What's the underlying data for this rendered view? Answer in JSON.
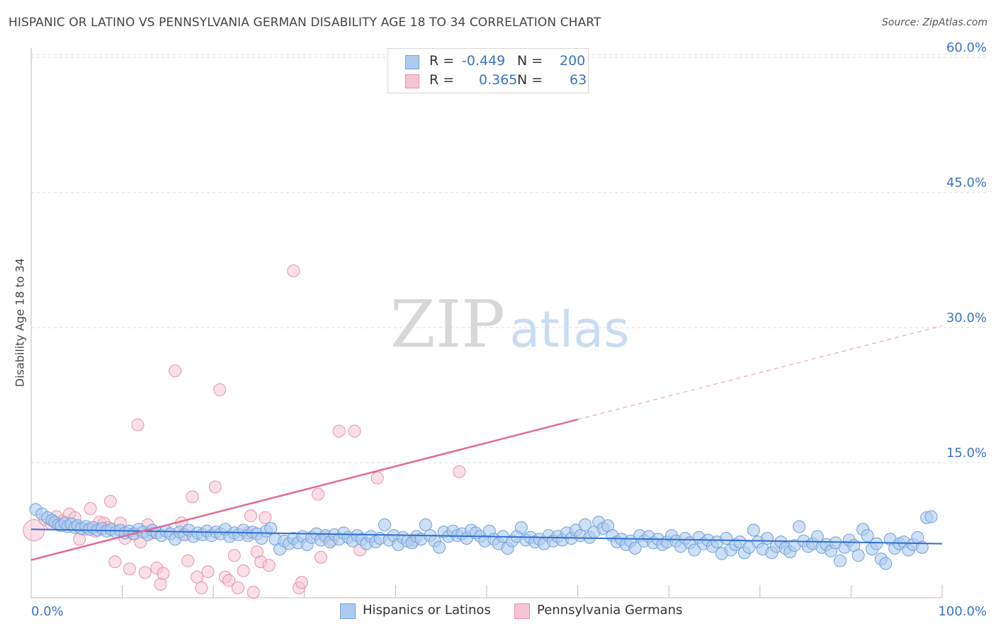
{
  "title": "HISPANIC OR LATINO VS PENNSYLVANIA GERMAN DISABILITY AGE 18 TO 34 CORRELATION CHART",
  "source": "Source: ZipAtlas.com",
  "watermark": {
    "zip": "ZIP",
    "atlas": "atlas"
  },
  "colors": {
    "blue_fill": "#aecbef",
    "blue_stroke": "#6f9fdc",
    "blue_line": "#2f6fd0",
    "pink_fill": "#f6c4d3",
    "pink_stroke": "#e891ad",
    "pink_line": "#e06a95",
    "axis_text": "#3a73c4",
    "grid": "#dcdcdc"
  },
  "legend": {
    "rows": [
      {
        "r_label": "R =",
        "r_value": "-0.449",
        "n_label": "N =",
        "n_value": "200"
      },
      {
        "r_label": "R =",
        "r_value": "0.365",
        "n_label": "N =",
        "n_value": "63"
      }
    ]
  },
  "bottom_legend": [
    {
      "label": "Hispanics or Latinos"
    },
    {
      "label": "Pennsylvania Germans"
    }
  ],
  "chart_data": {
    "type": "scatter",
    "title": "HISPANIC OR LATINO VS PENNSYLVANIA GERMAN DISABILITY AGE 18 TO 34 CORRELATION CHART",
    "xlabel": "",
    "ylabel": "Disability Age 18 to 34",
    "xlim": [
      0,
      100
    ],
    "ylim": [
      0,
      63
    ],
    "x_tick_labels": [
      "0.0%",
      "100.0%"
    ],
    "y_ticks": [
      15,
      30,
      45,
      60
    ],
    "y_tick_labels": [
      "15.0%",
      "30.0%",
      "45.0%",
      "60.0%"
    ],
    "series": [
      {
        "name": "Hispanics or Latinos",
        "r": -0.449,
        "n": 200,
        "trend": {
          "x": [
            0,
            100
          ],
          "y": [
            7.6,
            6.0
          ]
        },
        "points": [
          [
            0.5,
            9.8
          ],
          [
            1.2,
            9.3
          ],
          [
            1.8,
            8.9
          ],
          [
            2.3,
            8.6
          ],
          [
            2.6,
            8.4
          ],
          [
            3.0,
            8.1
          ],
          [
            3.3,
            8.0
          ],
          [
            3.7,
            8.3
          ],
          [
            4.0,
            7.9
          ],
          [
            4.4,
            8.2
          ],
          [
            4.8,
            7.8
          ],
          [
            5.1,
            8.0
          ],
          [
            5.5,
            7.7
          ],
          [
            6.0,
            7.9
          ],
          [
            6.4,
            7.6
          ],
          [
            6.8,
            7.8
          ],
          [
            7.3,
            7.5
          ],
          [
            7.8,
            7.7
          ],
          [
            8.3,
            7.4
          ],
          [
            8.8,
            7.6
          ],
          [
            9.3,
            7.3
          ],
          [
            9.8,
            7.5
          ],
          [
            10.3,
            7.2
          ],
          [
            10.8,
            7.4
          ],
          [
            11.3,
            7.1
          ],
          [
            11.8,
            7.6
          ],
          [
            12.3,
            7.3
          ],
          [
            12.8,
            7.0
          ],
          [
            13.3,
            7.5
          ],
          [
            13.8,
            7.2
          ],
          [
            14.3,
            6.9
          ],
          [
            14.8,
            7.4
          ],
          [
            15.3,
            7.1
          ],
          [
            15.8,
            6.5
          ],
          [
            16.3,
            7.3
          ],
          [
            16.8,
            7.0
          ],
          [
            17.3,
            7.5
          ],
          [
            17.8,
            6.8
          ],
          [
            18.3,
            7.2
          ],
          [
            18.8,
            7.0
          ],
          [
            19.3,
            7.4
          ],
          [
            19.8,
            6.9
          ],
          [
            20.3,
            7.3
          ],
          [
            20.8,
            7.1
          ],
          [
            21.3,
            7.6
          ],
          [
            21.8,
            6.8
          ],
          [
            22.3,
            7.2
          ],
          [
            22.8,
            7.0
          ],
          [
            23.3,
            7.5
          ],
          [
            23.8,
            6.9
          ],
          [
            24.3,
            7.3
          ],
          [
            24.8,
            7.1
          ],
          [
            25.3,
            6.6
          ],
          [
            25.8,
            7.4
          ],
          [
            26.3,
            7.7
          ],
          [
            26.8,
            6.5
          ],
          [
            27.3,
            5.4
          ],
          [
            27.8,
            6.3
          ],
          [
            28.3,
            6.0
          ],
          [
            28.8,
            6.6
          ],
          [
            29.3,
            6.1
          ],
          [
            29.8,
            6.8
          ],
          [
            30.3,
            5.9
          ],
          [
            30.8,
            6.7
          ],
          [
            31.3,
            7.1
          ],
          [
            31.8,
            6.4
          ],
          [
            32.3,
            6.9
          ],
          [
            32.8,
            6.2
          ],
          [
            33.3,
            7.0
          ],
          [
            33.8,
            6.5
          ],
          [
            34.3,
            7.2
          ],
          [
            34.8,
            6.7
          ],
          [
            35.3,
            6.3
          ],
          [
            35.8,
            6.9
          ],
          [
            36.3,
            6.5
          ],
          [
            36.8,
            6.0
          ],
          [
            37.3,
            6.8
          ],
          [
            37.8,
            6.2
          ],
          [
            38.3,
            6.6
          ],
          [
            38.8,
            8.1
          ],
          [
            39.3,
            6.4
          ],
          [
            39.8,
            6.9
          ],
          [
            40.3,
            5.9
          ],
          [
            40.8,
            6.7
          ],
          [
            41.3,
            6.3
          ],
          [
            41.8,
            6.1
          ],
          [
            42.3,
            6.8
          ],
          [
            42.8,
            6.5
          ],
          [
            43.3,
            8.1
          ],
          [
            43.8,
            6.9
          ],
          [
            44.3,
            6.3
          ],
          [
            44.8,
            5.6
          ],
          [
            45.3,
            7.3
          ],
          [
            45.8,
            6.8
          ],
          [
            46.3,
            7.4
          ],
          [
            46.8,
            6.9
          ],
          [
            47.3,
            7.1
          ],
          [
            47.8,
            6.6
          ],
          [
            48.3,
            7.5
          ],
          [
            48.8,
            7.2
          ],
          [
            49.3,
            6.8
          ],
          [
            49.8,
            6.3
          ],
          [
            50.3,
            7.4
          ],
          [
            50.8,
            6.5
          ],
          [
            51.3,
            6.0
          ],
          [
            51.8,
            6.8
          ],
          [
            52.3,
            5.5
          ],
          [
            52.8,
            6.3
          ],
          [
            53.3,
            6.8
          ],
          [
            53.8,
            7.8
          ],
          [
            54.3,
            6.4
          ],
          [
            54.8,
            6.7
          ],
          [
            55.3,
            6.2
          ],
          [
            55.8,
            6.5
          ],
          [
            56.3,
            6.0
          ],
          [
            56.8,
            6.9
          ],
          [
            57.3,
            6.3
          ],
          [
            57.8,
            6.8
          ],
          [
            58.3,
            6.4
          ],
          [
            58.8,
            7.2
          ],
          [
            59.3,
            6.6
          ],
          [
            59.8,
            7.5
          ],
          [
            60.3,
            6.9
          ],
          [
            60.8,
            8.1
          ],
          [
            61.3,
            6.7
          ],
          [
            61.8,
            7.3
          ],
          [
            62.3,
            8.4
          ],
          [
            62.8,
            7.7
          ],
          [
            63.3,
            8.0
          ],
          [
            63.8,
            6.9
          ],
          [
            64.3,
            6.2
          ],
          [
            64.8,
            6.5
          ],
          [
            65.3,
            5.9
          ],
          [
            65.8,
            6.3
          ],
          [
            66.3,
            5.5
          ],
          [
            66.8,
            6.9
          ],
          [
            67.3,
            6.3
          ],
          [
            67.8,
            6.8
          ],
          [
            68.3,
            6.1
          ],
          [
            68.8,
            6.5
          ],
          [
            69.3,
            5.9
          ],
          [
            69.8,
            6.2
          ],
          [
            70.3,
            6.9
          ],
          [
            70.8,
            6.3
          ],
          [
            71.3,
            5.7
          ],
          [
            71.8,
            6.6
          ],
          [
            72.3,
            6.1
          ],
          [
            72.8,
            5.3
          ],
          [
            73.3,
            6.7
          ],
          [
            73.8,
            6.0
          ],
          [
            74.3,
            6.4
          ],
          [
            74.8,
            5.7
          ],
          [
            75.3,
            6.2
          ],
          [
            75.8,
            4.9
          ],
          [
            76.3,
            6.6
          ],
          [
            76.8,
            5.3
          ],
          [
            77.3,
            5.9
          ],
          [
            77.8,
            6.2
          ],
          [
            78.3,
            5.0
          ],
          [
            78.8,
            5.6
          ],
          [
            79.3,
            7.5
          ],
          [
            79.8,
            6.2
          ],
          [
            80.3,
            5.4
          ],
          [
            80.8,
            6.6
          ],
          [
            81.3,
            5.0
          ],
          [
            81.8,
            5.7
          ],
          [
            82.3,
            6.2
          ],
          [
            82.8,
            5.5
          ],
          [
            83.3,
            5.1
          ],
          [
            83.8,
            5.8
          ],
          [
            84.3,
            7.9
          ],
          [
            84.8,
            6.3
          ],
          [
            85.3,
            5.7
          ],
          [
            85.8,
            6.0
          ],
          [
            86.3,
            6.8
          ],
          [
            86.8,
            5.6
          ],
          [
            87.3,
            5.9
          ],
          [
            87.8,
            5.2
          ],
          [
            88.3,
            6.1
          ],
          [
            88.8,
            4.1
          ],
          [
            89.3,
            5.6
          ],
          [
            89.8,
            6.4
          ],
          [
            90.3,
            5.8
          ],
          [
            90.8,
            4.7
          ],
          [
            91.3,
            7.6
          ],
          [
            91.8,
            6.9
          ],
          [
            92.3,
            5.4
          ],
          [
            92.8,
            6.0
          ],
          [
            93.3,
            4.3
          ],
          [
            93.8,
            3.8
          ],
          [
            94.3,
            6.5
          ],
          [
            94.8,
            5.5
          ],
          [
            95.3,
            6.0
          ],
          [
            95.8,
            6.2
          ],
          [
            96.3,
            5.3
          ],
          [
            96.8,
            5.9
          ],
          [
            97.3,
            6.7
          ],
          [
            97.8,
            5.6
          ],
          [
            98.3,
            8.9
          ],
          [
            98.8,
            9.0
          ]
        ]
      },
      {
        "name": "Pennsylvania Germans",
        "r": 0.365,
        "n": 63,
        "trend": {
          "x": [
            0,
            60
          ],
          "y": [
            4.2,
            19.8
          ]
        },
        "trend_dashed": {
          "x": [
            60,
            100
          ],
          "y": [
            19.8,
            30.2
          ]
        },
        "points": [
          [
            0.3,
            7.5
          ],
          [
            1.5,
            8.7
          ],
          [
            2.2,
            8.2
          ],
          [
            2.8,
            9.0
          ],
          [
            3.5,
            8.5
          ],
          [
            4.2,
            9.3
          ],
          [
            4.8,
            8.9
          ],
          [
            5.3,
            6.5
          ],
          [
            5.8,
            7.6
          ],
          [
            6.5,
            9.9
          ],
          [
            7.0,
            7.4
          ],
          [
            7.5,
            8.4
          ],
          [
            8.0,
            8.3
          ],
          [
            8.5,
            7.8
          ],
          [
            8.7,
            10.7
          ],
          [
            9.2,
            4.0
          ],
          [
            9.8,
            8.3
          ],
          [
            10.3,
            6.6
          ],
          [
            10.8,
            3.2
          ],
          [
            11.2,
            7.1
          ],
          [
            11.7,
            19.2
          ],
          [
            12.0,
            6.2
          ],
          [
            12.5,
            2.8
          ],
          [
            12.8,
            8.1
          ],
          [
            13.2,
            7.2
          ],
          [
            13.8,
            3.3
          ],
          [
            14.2,
            1.5
          ],
          [
            14.5,
            2.7
          ],
          [
            15.8,
            25.2
          ],
          [
            16.5,
            8.3
          ],
          [
            16.9,
            7.0
          ],
          [
            17.2,
            4.1
          ],
          [
            17.7,
            11.2
          ],
          [
            18.2,
            2.3
          ],
          [
            18.7,
            1.1
          ],
          [
            19.4,
            2.9
          ],
          [
            20.2,
            12.3
          ],
          [
            20.7,
            23.1
          ],
          [
            21.3,
            2.3
          ],
          [
            21.7,
            1.9
          ],
          [
            22.3,
            4.7
          ],
          [
            22.7,
            1.1
          ],
          [
            23.3,
            3.0
          ],
          [
            23.8,
            7.2
          ],
          [
            24.1,
            9.1
          ],
          [
            24.4,
            0.6
          ],
          [
            24.8,
            5.1
          ],
          [
            25.2,
            4.0
          ],
          [
            25.7,
            8.9
          ],
          [
            26.1,
            3.6
          ],
          [
            28.8,
            36.3
          ],
          [
            29.4,
            1.1
          ],
          [
            29.7,
            1.7
          ],
          [
            31.5,
            11.5
          ],
          [
            31.8,
            4.5
          ],
          [
            32.3,
            6.7
          ],
          [
            33.0,
            6.4
          ],
          [
            33.8,
            18.5
          ],
          [
            35.5,
            18.5
          ],
          [
            36.1,
            5.3
          ],
          [
            38.0,
            13.3
          ],
          [
            47.0,
            14.0
          ],
          [
            42.0,
            6.4
          ]
        ]
      }
    ]
  }
}
